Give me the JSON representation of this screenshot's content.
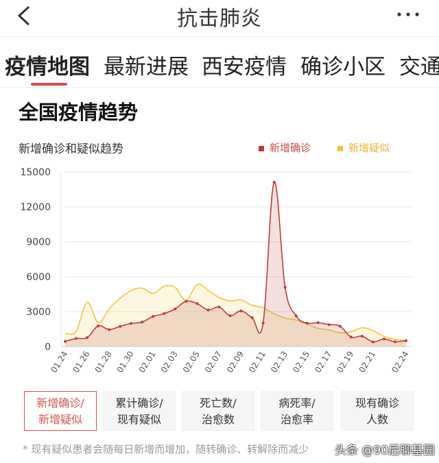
{
  "header": {
    "title": "抗击肺炎",
    "back_icon": "chevron-left-icon",
    "more_icon": "more-dots-icon"
  },
  "tabs": [
    "疫情地图",
    "最新进展",
    "西安疫情",
    "确诊小区",
    "交通"
  ],
  "section_title": "全国疫情趋势",
  "chart_data": {
    "type": "area",
    "title": "新增确诊和疑似趋势",
    "xlabel": "",
    "ylabel": "",
    "ylim": [
      0,
      15000
    ],
    "yticks": [
      0,
      3000,
      6000,
      9000,
      12000,
      15000
    ],
    "x_tick_labels": [
      "01.24",
      "01.26",
      "01.28",
      "01.30",
      "02.01",
      "02.03",
      "02.05",
      "02.07",
      "02.09",
      "02.11",
      "02.13",
      "02.15",
      "02.17",
      "02.19",
      "02.21",
      "02.24"
    ],
    "x": [
      "01.24",
      "01.25",
      "01.26",
      "01.27",
      "01.28",
      "01.29",
      "01.30",
      "01.31",
      "02.01",
      "02.02",
      "02.03",
      "02.04",
      "02.05",
      "02.06",
      "02.07",
      "02.08",
      "02.09",
      "02.10",
      "02.11",
      "02.12",
      "02.13",
      "02.14",
      "02.15",
      "02.16",
      "02.17",
      "02.18",
      "02.19",
      "02.20",
      "02.21",
      "02.22",
      "02.23",
      "02.24"
    ],
    "grid": true,
    "legend_position": "top-right",
    "series": [
      {
        "name": "新增确诊",
        "color": "#b5403a",
        "values": [
          444,
          688,
          769,
          1771,
          1459,
          1737,
          1982,
          2102,
          2590,
          2829,
          3235,
          3887,
          3694,
          3143,
          3399,
          2656,
          3062,
          2478,
          2015,
          14108,
          5090,
          2641,
          2009,
          2048,
          1886,
          1749,
          820,
          889,
          397,
          648,
          409,
          508
        ]
      },
      {
        "name": "新增疑似",
        "color": "#f4c542",
        "values": [
          1118,
          1309,
          3806,
          2077,
          3248,
          4148,
          4812,
          5019,
          4562,
          5173,
          5072,
          3971,
          5328,
          4833,
          4214,
          3916,
          4008,
          3536,
          3342,
          2807,
          2450,
          2277,
          1918,
          1563,
          1432,
          1185,
          1277,
          1614,
          1361,
          882,
          620,
          530
        ]
      }
    ]
  },
  "buttons": [
    {
      "line1": "新增确诊/",
      "line2": "新增疑似"
    },
    {
      "line1": "累计确诊/",
      "line2": "现有疑似"
    },
    {
      "line1": "死亡数/",
      "line2": "治愈数"
    },
    {
      "line1": "病死率/",
      "line2": "治愈率"
    },
    {
      "line1": "现有确诊",
      "line2": "人数"
    }
  ],
  "footnote": "* 现有疑似患者会随每日新增而增加，随转确诊、转解除而减少",
  "watermark": "头条 @90后聊基园",
  "colors": {
    "accent": "#e04b4b",
    "confirmed": "#b5403a",
    "suspected": "#f4c542"
  }
}
